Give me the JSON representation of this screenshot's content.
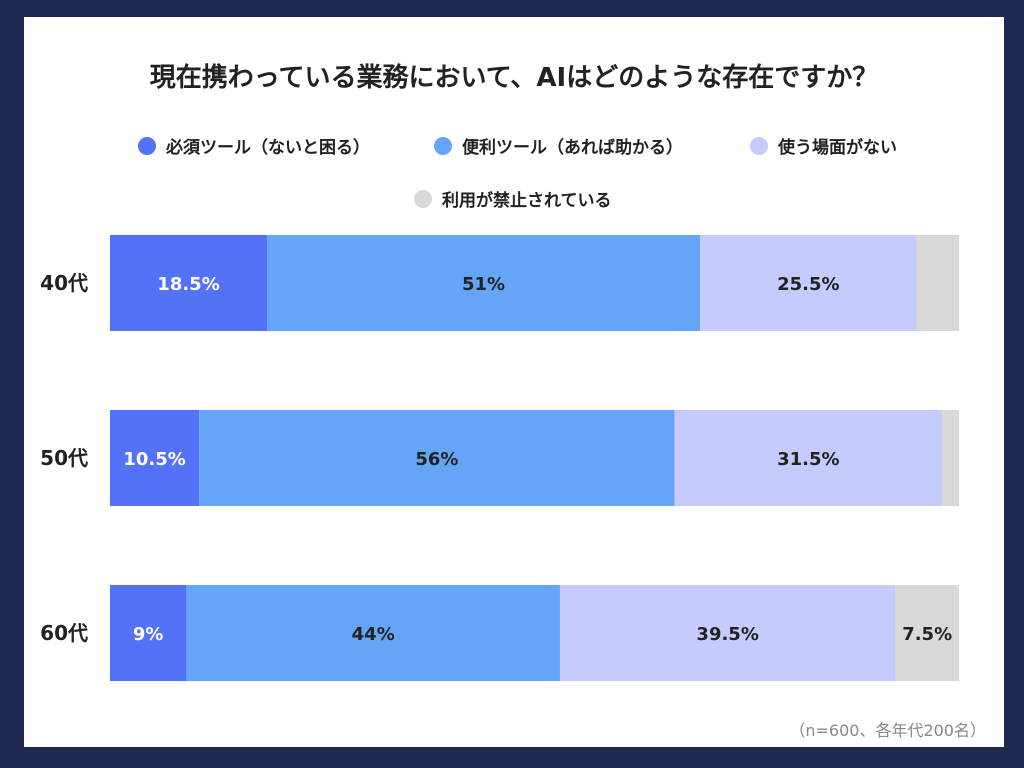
{
  "title": "現在携わっている業務において、AIはどのような存在ですか？",
  "note": "（n=600、各年代200名）",
  "chart_data": {
    "type": "bar",
    "orientation": "horizontal",
    "stacked": true,
    "normalized_to": 100,
    "title": "現在携わっている業務において、AIはどのような存在ですか？",
    "categories": [
      "40代",
      "50代",
      "60代"
    ],
    "series": [
      {
        "name": "必須ツール（ないと困る）",
        "color": "#5472f8",
        "label_color": "#ffffff",
        "values": [
          18.5,
          10.5,
          9
        ]
      },
      {
        "name": "便利ツール（あれば助かる）",
        "color": "#65a5f8",
        "label_color": "#222222",
        "values": [
          51,
          56,
          44
        ]
      },
      {
        "name": "使う場面がない",
        "color": "#c5ccfd",
        "label_color": "#222222",
        "values": [
          25.5,
          31.5,
          39.5
        ]
      },
      {
        "name": "利用が禁止されている",
        "color": "#d9d9d9",
        "label_color": "#222222",
        "values": [
          5,
          2,
          7.5
        ]
      }
    ],
    "data_labels": [
      [
        "18.5%",
        "51%",
        "25.5%",
        ""
      ],
      [
        "10.5%",
        "56%",
        "31.5%",
        ""
      ],
      [
        "9%",
        "44%",
        "39.5%",
        "7.5%"
      ]
    ],
    "legend_position": "top",
    "xlim": [
      0,
      100
    ],
    "grid": false
  }
}
